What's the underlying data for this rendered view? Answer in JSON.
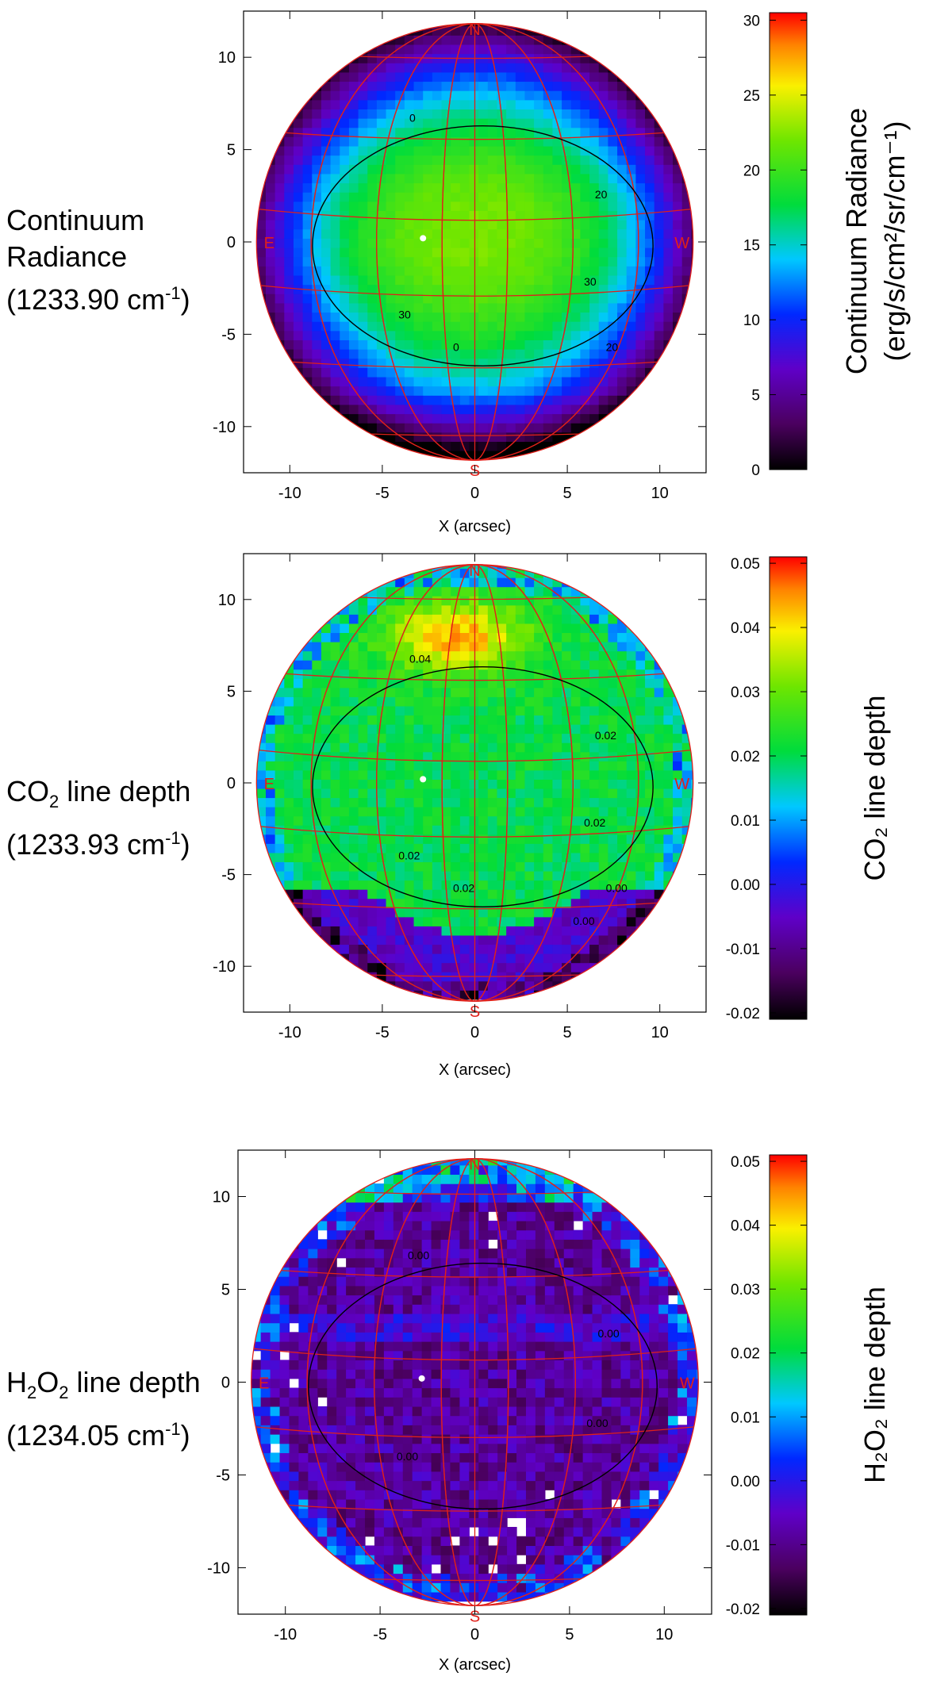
{
  "chart_data": [
    {
      "type": "heatmap",
      "id": "continuum",
      "side_label": [
        "Continuum",
        "Radiance",
        "(1233.90 cm",
        "-1",
        ")"
      ],
      "xlabel": "X (arcsec)",
      "xlim": [
        -12.5,
        12.5
      ],
      "ylim": [
        -12.5,
        12.5
      ],
      "xticks": [
        -10,
        -5,
        0,
        5,
        10
      ],
      "yticks": [
        -10,
        -5,
        0,
        5,
        10
      ],
      "colorbar": {
        "range": [
          0,
          30.5
        ],
        "ticks": [
          0,
          5,
          10,
          15,
          20,
          25,
          30
        ],
        "tick_labels": [
          "0",
          "5",
          "10",
          "15",
          "20",
          "25",
          "30"
        ],
        "label_line1": "Continuum Radiance",
        "label_line2": "(erg/s/cm²/sr/cm⁻¹)"
      },
      "contour_labels": [
        "0",
        "20",
        "30",
        "30",
        "20",
        "0"
      ],
      "compass": {
        "N": "N",
        "S": "S",
        "E": "E",
        "W": "W"
      },
      "disk_radius_arcsec": 11.8
    },
    {
      "type": "heatmap",
      "id": "co2",
      "side_label": [
        "CO",
        "2",
        " line depth",
        "(1233.93 cm",
        "-1",
        ")"
      ],
      "xlabel": "X (arcsec)",
      "xlim": [
        -12.5,
        12.5
      ],
      "ylim": [
        -12.5,
        12.5
      ],
      "xticks": [
        -10,
        -5,
        0,
        5,
        10
      ],
      "yticks": [
        -10,
        -5,
        0,
        5,
        10
      ],
      "colorbar": {
        "range": [
          -0.021,
          0.051
        ],
        "ticks": [
          -0.02,
          -0.01,
          0.0,
          0.01,
          0.02,
          0.03,
          0.04,
          0.05
        ],
        "tick_labels": [
          "-0.02",
          "-0.01",
          "0.00",
          "0.01",
          "0.02",
          "0.03",
          "0.04",
          "0.05"
        ],
        "label_line1": "CO₂ line depth"
      },
      "contour_labels": [
        "0.04",
        "0.02",
        "0.02",
        "0.02",
        "0.00",
        "0.02",
        "0.00"
      ],
      "compass": {
        "N": "N",
        "S": "S",
        "E": "E",
        "W": "W"
      },
      "disk_radius_arcsec": 11.8
    },
    {
      "type": "heatmap",
      "id": "h2o2",
      "side_label": [
        "H",
        "2",
        "O",
        "2",
        " line depth",
        "(1234.05 cm",
        "-1",
        ")"
      ],
      "xlabel": "X (arcsec)",
      "xlim": [
        -12.5,
        12.5
      ],
      "ylim": [
        -12.5,
        12.5
      ],
      "xticks": [
        -10,
        -5,
        0,
        5,
        10
      ],
      "yticks": [
        -10,
        -5,
        0,
        5,
        10
      ],
      "colorbar": {
        "range": [
          -0.021,
          0.051
        ],
        "ticks": [
          -0.02,
          -0.01,
          0.0,
          0.01,
          0.02,
          0.03,
          0.04,
          0.05
        ],
        "tick_labels": [
          "-0.02",
          "-0.01",
          "0.00",
          "0.01",
          "0.02",
          "0.03",
          "0.04",
          "0.05"
        ],
        "label_line1": "H₂O₂ line depth"
      },
      "contour_labels": [
        "0.00",
        "0.00",
        "0.00",
        "0.00"
      ],
      "compass": {
        "N": "N",
        "S": "S",
        "E": "E",
        "W": "W"
      },
      "disk_radius_arcsec": 11.8
    }
  ]
}
